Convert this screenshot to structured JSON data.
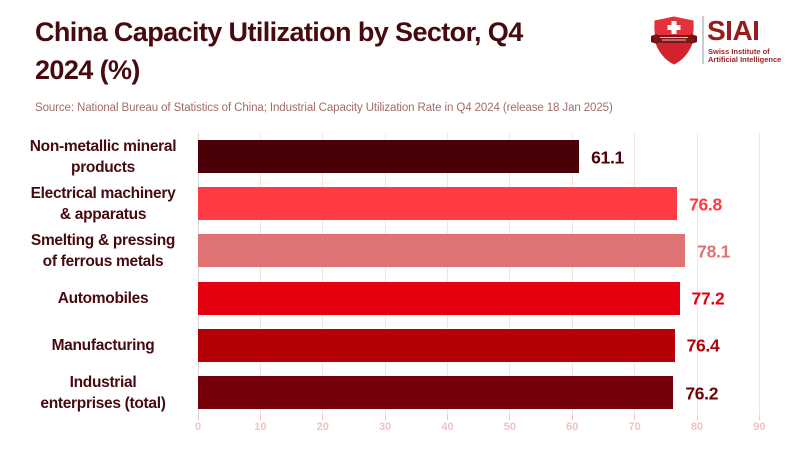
{
  "header": {
    "title": "China Capacity Utilization by Sector, Q4 2024 (%)",
    "title_lines": [
      "China Capacity Utilization by Sector, Q4",
      "2024 (%)"
    ],
    "logo": {
      "acronym": "SIAI",
      "name_line1": "Swiss Institute of",
      "name_line2": "Artificial Intelligence",
      "shield_icon": "swiss-shield-icon",
      "shield_color": "#e33239",
      "banner_color": "#7d1417",
      "text_color": "#9a1b1b"
    }
  },
  "source_note": "Source: National Bureau of Statistics of China; Industrial Capacity Utilization Rate in Q4 2024 (release 18 Jan 2025)",
  "colors": {
    "background": "#ffffff",
    "title_text": "#470a0f",
    "source_text": "#a06c6c",
    "gridline": "#f8e2e2",
    "zero_gridline": "#d9d9d9",
    "tick_label": "#f2c2c2"
  },
  "chart_data": {
    "type": "bar",
    "orientation": "horizontal",
    "title": "China Capacity Utilization by Sector, Q4 2024 (%)",
    "categories": [
      "Non-metallic mineral products",
      "Electrical machinery & apparatus",
      "Smelting & pressing of ferrous metals",
      "Automobiles",
      "Manufacturing",
      "Industrial enterprises (total)"
    ],
    "category_lines": [
      [
        "Non-metallic mineral",
        "products"
      ],
      [
        "Electrical machinery",
        "& apparatus"
      ],
      [
        "Smelting & pressing",
        "of ferrous metals"
      ],
      [
        "Automobiles"
      ],
      [
        "Manufacturing"
      ],
      [
        "Industrial",
        "enterprises (total)"
      ]
    ],
    "values": [
      61.1,
      76.8,
      78.1,
      77.2,
      76.4,
      76.2
    ],
    "value_labels": [
      "61.1",
      "76.8",
      "78.1",
      "77.2",
      "76.4",
      "76.2"
    ],
    "bar_colors": [
      "#4b0007",
      "#ff3b43",
      "#df7272",
      "#e50010",
      "#b60007",
      "#73000a"
    ],
    "xlabel": "",
    "ylabel": "",
    "xlim": [
      0,
      92.5
    ],
    "xticks": [
      0,
      10,
      20,
      30,
      40,
      50,
      60,
      70,
      80,
      90
    ],
    "grid": true,
    "legend": false
  }
}
